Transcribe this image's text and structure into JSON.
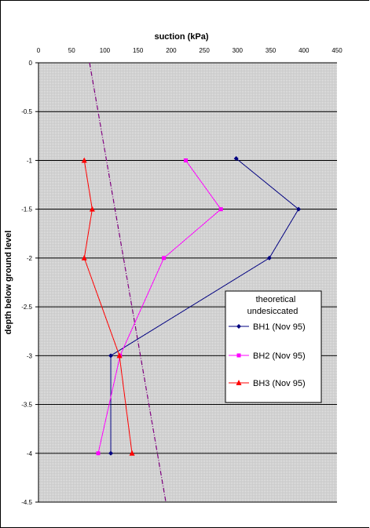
{
  "chart_data": {
    "type": "line",
    "title": "",
    "xlabel": "suction (kPa)",
    "ylabel": "depth below ground level",
    "xlim": [
      0,
      450
    ],
    "ylim": [
      -4.5,
      0
    ],
    "xticks": [
      "0",
      "50",
      "100",
      "150",
      "200",
      "250",
      "300",
      "350",
      "400",
      "450"
    ],
    "yticks": [
      "0",
      "-0.5",
      "-1",
      "-1.5",
      "-2",
      "-2.5",
      "-3",
      "-3.5",
      "-4",
      "-4.5"
    ],
    "grid": "horizontal",
    "legend_position": "right",
    "series": [
      {
        "name": "theoretical undesiccated",
        "color": "#800080",
        "style": "dash-dot",
        "marker": "none",
        "points": [
          [
            77,
            0
          ],
          [
            192,
            -4.5
          ]
        ]
      },
      {
        "name": "BH1 (Nov 95)",
        "color": "#000080",
        "style": "solid",
        "marker": "diamond",
        "points": [
          [
            298,
            -0.98
          ],
          [
            392,
            -1.5
          ],
          [
            348,
            -2.0
          ],
          [
            109,
            -3.0
          ],
          [
            109,
            -4.0
          ]
        ]
      },
      {
        "name": "BH2 (Nov 95)",
        "color": "#ff00ff",
        "style": "solid",
        "marker": "square",
        "points": [
          [
            222,
            -1.0
          ],
          [
            275,
            -1.5
          ],
          [
            189,
            -2.0
          ],
          [
            123,
            -3.0
          ],
          [
            90,
            -4.0
          ]
        ]
      },
      {
        "name": "BH3 (Nov 95)",
        "color": "#ff0000",
        "style": "solid",
        "marker": "triangle",
        "points": [
          [
            69,
            -1.0
          ],
          [
            81,
            -1.5
          ],
          [
            69,
            -2.0
          ],
          [
            122,
            -3.0
          ],
          [
            141,
            -4.0
          ]
        ]
      }
    ]
  }
}
